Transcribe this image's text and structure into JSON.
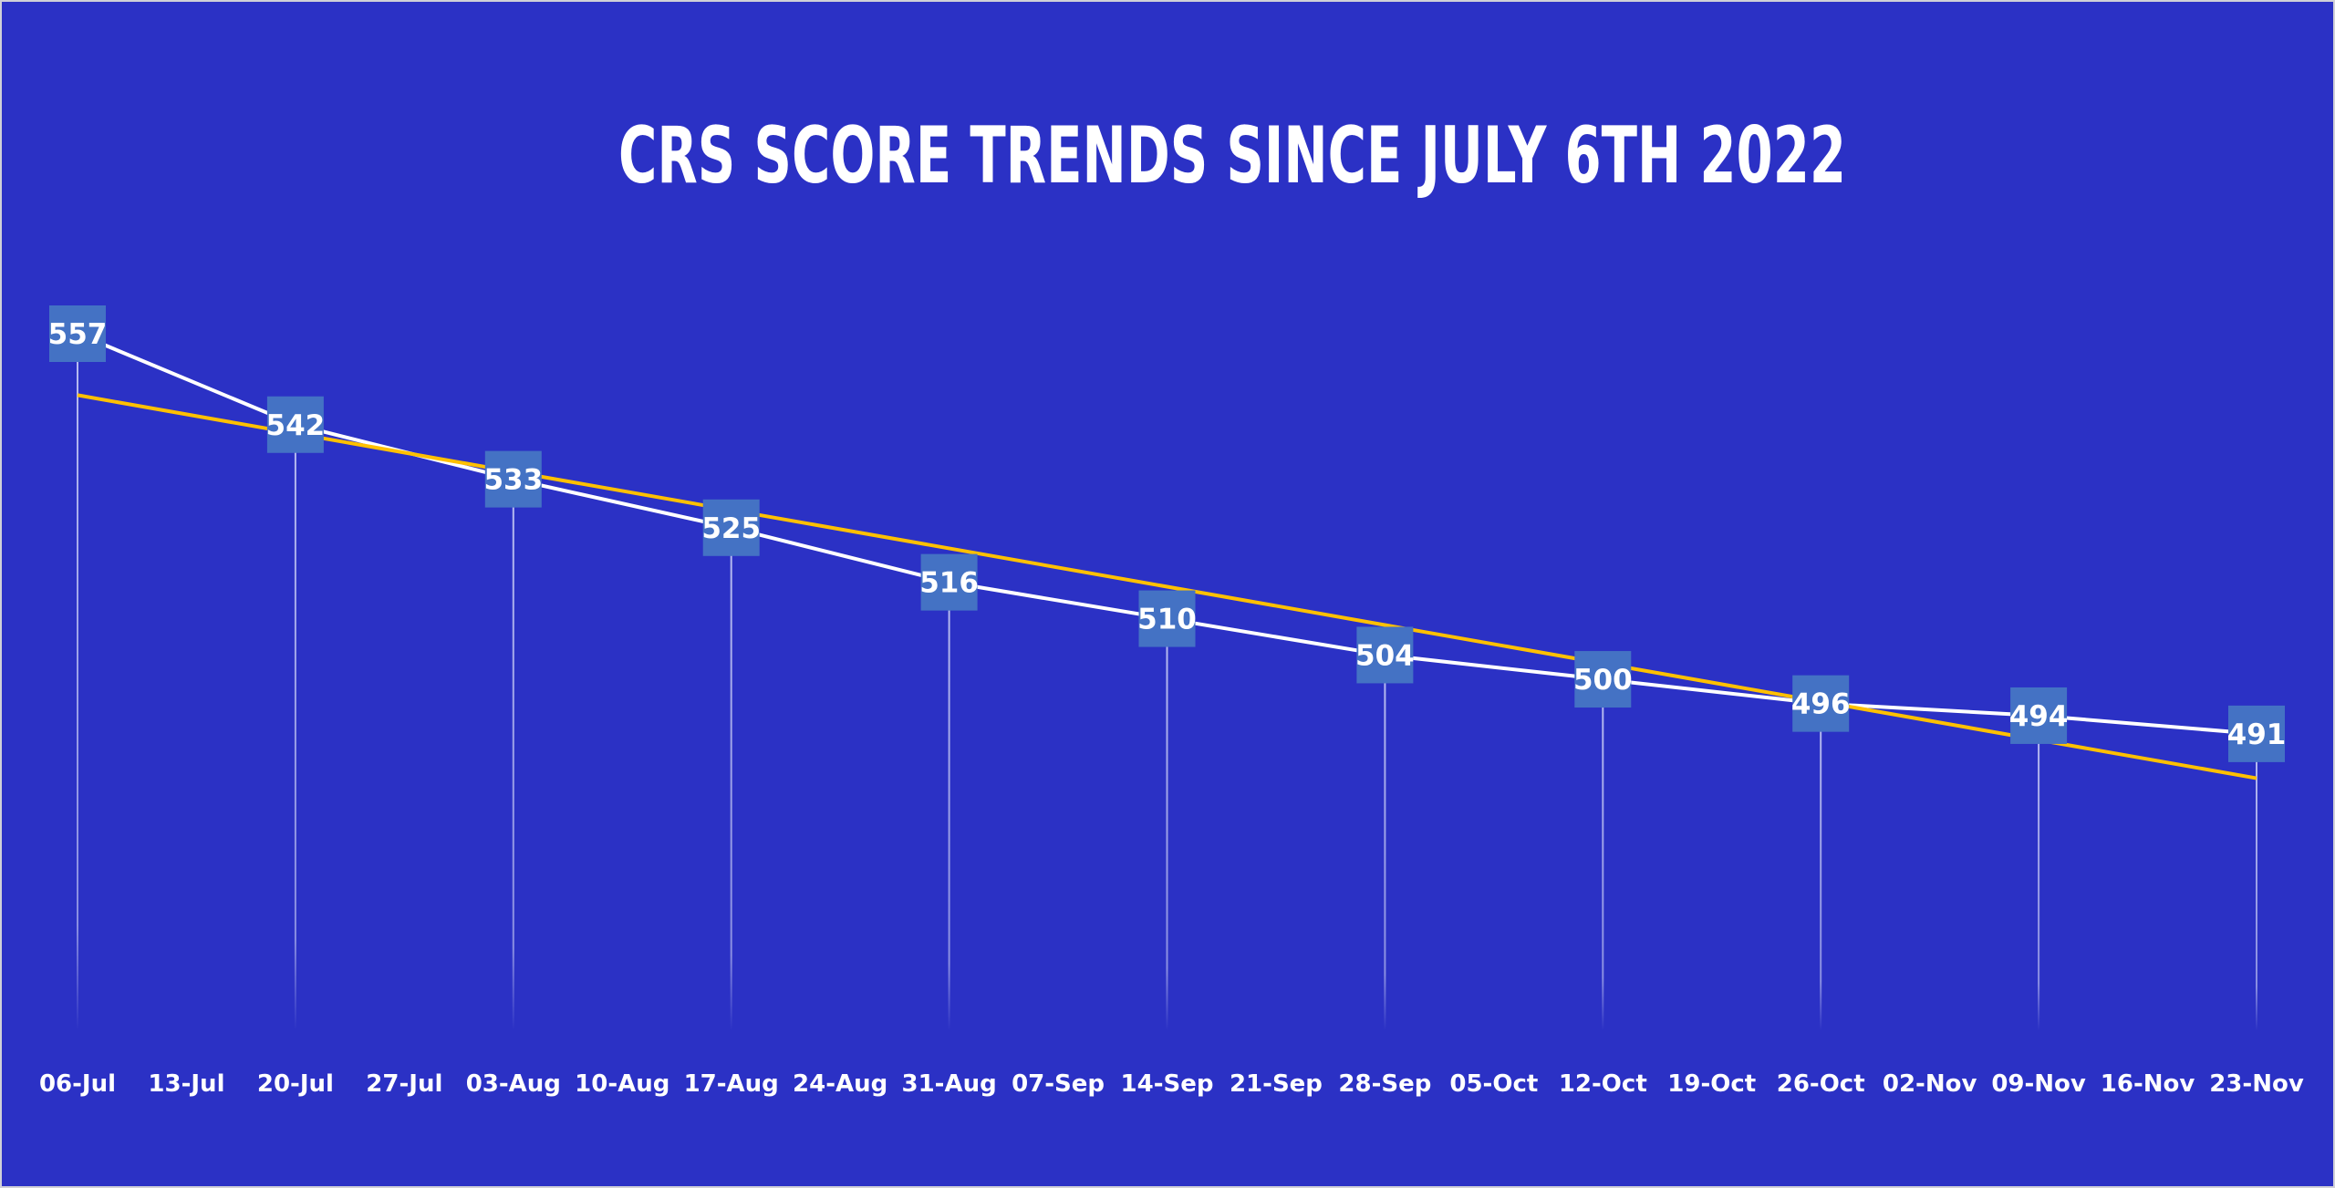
{
  "chart_data": {
    "type": "line",
    "title": "CRS SCORE TRENDS SINCE JULY 6TH 2022",
    "xlabel": "",
    "ylabel": "",
    "x_tick_labels": [
      "06-Jul",
      "13-Jul",
      "20-Jul",
      "27-Jul",
      "03-Aug",
      "10-Aug",
      "17-Aug",
      "24-Aug",
      "31-Aug",
      "07-Sep",
      "14-Sep",
      "21-Sep",
      "28-Sep",
      "05-Oct",
      "12-Oct",
      "19-Oct",
      "26-Oct",
      "02-Nov",
      "09-Nov",
      "16-Nov",
      "23-Nov"
    ],
    "series": [
      {
        "name": "CRS score",
        "x": [
          "06-Jul",
          "20-Jul",
          "03-Aug",
          "17-Aug",
          "31-Aug",
          "14-Sep",
          "28-Sep",
          "12-Oct",
          "26-Oct",
          "09-Nov",
          "23-Nov"
        ],
        "values": [
          557,
          542,
          533,
          525,
          516,
          510,
          504,
          500,
          496,
          494,
          491
        ],
        "color": "#ffffff",
        "label_box_color": "#4472c4"
      },
      {
        "name": "Linear trend",
        "type": "linear-trendline",
        "color": "#ffc000"
      }
    ],
    "grid": false,
    "legend": "none",
    "colors": {
      "background": "#2b31c5"
    }
  }
}
